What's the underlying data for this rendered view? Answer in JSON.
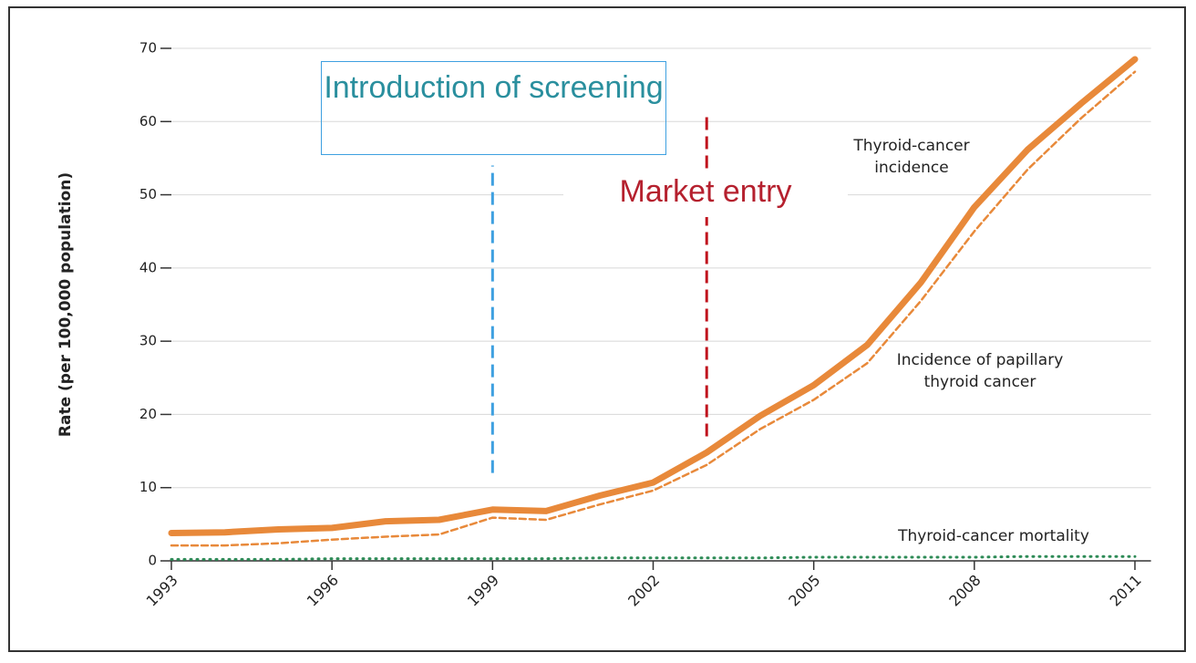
{
  "chart_data": {
    "type": "line",
    "y_label": "Rate (per 100,000 population)",
    "x": [
      1993,
      1994,
      1995,
      1996,
      1997,
      1998,
      1999,
      2000,
      2001,
      2002,
      2003,
      2004,
      2005,
      2006,
      2007,
      2008,
      2009,
      2010,
      2011
    ],
    "series": [
      {
        "name": "Thyroid-cancer incidence",
        "color": "#e8893a",
        "style": "solid",
        "values": [
          3.8,
          3.9,
          4.3,
          4.5,
          5.4,
          5.6,
          7.0,
          6.8,
          8.9,
          10.7,
          14.8,
          19.8,
          24.0,
          29.5,
          38.0,
          48.3,
          56.2,
          62.5,
          68.5
        ]
      },
      {
        "name": "Incidence of papillary thyroid cancer",
        "color": "#e8893a",
        "style": "dashed",
        "values": [
          2.1,
          2.1,
          2.4,
          2.9,
          3.3,
          3.6,
          5.9,
          5.6,
          7.7,
          9.6,
          13.1,
          18.0,
          22.0,
          27.0,
          35.5,
          45.0,
          53.5,
          60.5,
          66.8
        ]
      },
      {
        "name": "Thyroid-cancer mortality",
        "color": "#2e8b57",
        "style": "dotted",
        "values": [
          0.2,
          0.2,
          0.2,
          0.3,
          0.3,
          0.3,
          0.3,
          0.3,
          0.4,
          0.4,
          0.4,
          0.4,
          0.5,
          0.5,
          0.5,
          0.5,
          0.6,
          0.6,
          0.6
        ]
      }
    ],
    "xlim": [
      1993,
      2011.3
    ],
    "xticks": [
      1993,
      1996,
      1999,
      2002,
      2005,
      2008,
      2011
    ],
    "ylim": [
      0,
      70
    ],
    "yticks": [
      0,
      10,
      20,
      30,
      40,
      50,
      60,
      70
    ],
    "grid": true,
    "annotations": [
      {
        "text": "Introduction of screening",
        "x": 1999,
        "color": "#3ea0e0",
        "text_color": "#2a8f9e"
      },
      {
        "text": "Market entry",
        "x": 2003,
        "color": "#c0141e",
        "text_color": "#b5202e"
      }
    ]
  }
}
